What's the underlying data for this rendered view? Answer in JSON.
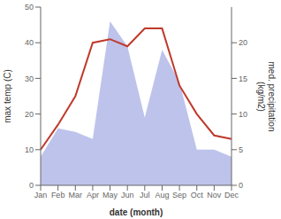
{
  "chart_data": {
    "type": "line",
    "categories": [
      "Jan",
      "Feb",
      "Mar",
      "Apr",
      "May",
      "Jun",
      "Jul",
      "Aug",
      "Sep",
      "Oct",
      "Nov",
      "Dec"
    ],
    "xlabel": "date (month)",
    "ylabel": "max temp (C)",
    "y2label": "med. precipitation\n(kg/m2)",
    "series": [
      {
        "type": "area",
        "axis": "y2",
        "color": "#b3b9e8",
        "values": [
          4,
          8,
          7.5,
          6.5,
          23,
          19.5,
          9.5,
          19,
          14.5,
          5,
          5,
          4
        ]
      },
      {
        "type": "line",
        "color": "#c0392b",
        "values": [
          10,
          17,
          25,
          40,
          41,
          39,
          44,
          44,
          28,
          20,
          14,
          13
        ]
      }
    ],
    "ylim": [
      0,
      50
    ],
    "yticks": [
      0,
      10,
      20,
      30,
      40,
      50
    ],
    "y2lim": [
      0,
      25
    ],
    "y2ticks": [
      0,
      5,
      10,
      15,
      20
    ],
    "grid": false
  }
}
